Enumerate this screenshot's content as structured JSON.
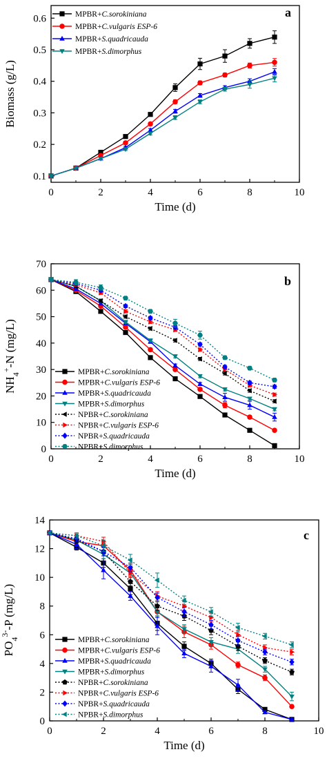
{
  "colors": {
    "C.sorokiniana": "#000000",
    "C.vulgaris ESP-6": "#ff0000",
    "S.quadricauda": "#0000ff",
    "S.dimorphus": "#008080"
  },
  "chart_data": [
    {
      "type": "line",
      "panel_label": "a",
      "xlabel": "Time (d)",
      "ylabel": "Biomass (g/L)",
      "xlim": [
        0,
        10
      ],
      "ylim": [
        0.08,
        0.64
      ],
      "xticks": [
        "0",
        "2",
        "4",
        "6",
        "8",
        "10"
      ],
      "yticks": [
        "0.1",
        "0.2",
        "0.3",
        "0.4",
        "0.5",
        "0.6"
      ],
      "grid": false,
      "legend_position": "top-left",
      "x": [
        0,
        1,
        2,
        3,
        4,
        5,
        6,
        7,
        8,
        9
      ],
      "series": [
        {
          "prefix": "MPBR+",
          "species": "C.sorokiniana",
          "marker": "square",
          "dash": "solid",
          "values": [
            0.1,
            0.125,
            0.175,
            0.225,
            0.295,
            0.38,
            0.455,
            0.48,
            0.52,
            0.54
          ],
          "errors": [
            0.003,
            0.004,
            0.004,
            0.005,
            0.005,
            0.012,
            0.018,
            0.02,
            0.015,
            0.02
          ]
        },
        {
          "prefix": "MPBR+",
          "species": "C.vulgaris ESP-6",
          "marker": "circle",
          "dash": "solid",
          "values": [
            0.1,
            0.125,
            0.165,
            0.205,
            0.265,
            0.335,
            0.395,
            0.42,
            0.45,
            0.46
          ],
          "errors": [
            0.003,
            0.004,
            0.004,
            0.005,
            0.005,
            0.006,
            0.006,
            0.006,
            0.008,
            0.012
          ]
        },
        {
          "prefix": "MPBR+",
          "species": "S.quadricauda",
          "marker": "triangle-up",
          "dash": "solid",
          "values": [
            0.1,
            0.125,
            0.155,
            0.19,
            0.245,
            0.305,
            0.355,
            0.38,
            0.4,
            0.43
          ],
          "errors": [
            0.003,
            0.004,
            0.004,
            0.004,
            0.005,
            0.006,
            0.006,
            0.006,
            0.008,
            0.01
          ]
        },
        {
          "prefix": "MPBR+",
          "species": "S.dimorphus",
          "marker": "triangle-down",
          "dash": "solid",
          "values": [
            0.1,
            0.125,
            0.155,
            0.185,
            0.235,
            0.285,
            0.335,
            0.375,
            0.39,
            0.41
          ],
          "errors": [
            0.003,
            0.004,
            0.004,
            0.004,
            0.005,
            0.006,
            0.006,
            0.006,
            0.012,
            0.012
          ]
        }
      ]
    },
    {
      "type": "line",
      "panel_label": "b",
      "xlabel": "Time (d)",
      "ylabel_main": "NH",
      "ylabel_sub": "4",
      "ylabel_sup": "+",
      "ylabel_rest": "-N (mg/L)",
      "xlim": [
        0,
        10
      ],
      "ylim": [
        0,
        70
      ],
      "xticks": [
        "0",
        "2",
        "4",
        "6",
        "8",
        "10"
      ],
      "yticks": [
        "0",
        "10",
        "20",
        "30",
        "40",
        "50",
        "60",
        "70"
      ],
      "grid": false,
      "legend_position": "bottom-left",
      "x": [
        0,
        1,
        2,
        3,
        4,
        5,
        6,
        7,
        8,
        9
      ],
      "series": [
        {
          "prefix": "MPBR+",
          "species": "C.sorokiniana",
          "marker": "square",
          "dash": "solid",
          "values": [
            64,
            59.5,
            52,
            44,
            34.5,
            26.5,
            19.8,
            12.8,
            7,
            1.2
          ],
          "errors": [
            0.5,
            0.6,
            0.6,
            0.6,
            0.6,
            0.6,
            0.6,
            0.6,
            0.6,
            0.5
          ]
        },
        {
          "prefix": "MPBR+",
          "species": "C.vulgaris ESP-6",
          "marker": "circle",
          "dash": "solid",
          "values": [
            64,
            60,
            54,
            46,
            37.5,
            30,
            22.5,
            16.5,
            12,
            7
          ],
          "errors": [
            0.5,
            0.6,
            0.6,
            0.6,
            0.6,
            0.6,
            0.6,
            1.0,
            0.6,
            0.5
          ]
        },
        {
          "prefix": "MPBR+",
          "species": "S.quadricauda",
          "marker": "triangle-up",
          "dash": "solid",
          "values": [
            64,
            60.5,
            55,
            47.5,
            40.5,
            31.5,
            24.5,
            19.5,
            16.5,
            12
          ],
          "errors": [
            0.5,
            0.6,
            0.6,
            0.6,
            0.6,
            0.6,
            0.6,
            1.5,
            1.5,
            1.5
          ]
        },
        {
          "prefix": "MPBR+",
          "species": "S.dimorphus",
          "marker": "triangle-down",
          "dash": "solid",
          "values": [
            64,
            61.5,
            56,
            48,
            41,
            35,
            27.5,
            22.5,
            19,
            15
          ],
          "errors": [
            0.5,
            0.6,
            0.6,
            0.6,
            0.6,
            0.6,
            0.6,
            0.6,
            0.6,
            0.6
          ]
        },
        {
          "prefix": "NPBR+",
          "species": "C.sorokiniana",
          "marker": "triangle-left",
          "dash": "dotted",
          "values": [
            64,
            61.5,
            56,
            50,
            45.5,
            41,
            34,
            28.5,
            22,
            18
          ],
          "errors": [
            0.5,
            0.6,
            0.6,
            0.6,
            0.6,
            0.6,
            0.6,
            0.6,
            0.6,
            0.6
          ]
        },
        {
          "prefix": "NPBR+",
          "species": "C.vulgaris ESP-6",
          "marker": "triangle-right",
          "dash": "dotted",
          "values": [
            64,
            62,
            59,
            52,
            48,
            45,
            37.5,
            30,
            24,
            20.5
          ],
          "errors": [
            0.5,
            0.6,
            0.6,
            0.6,
            0.6,
            0.6,
            0.6,
            0.6,
            0.6,
            0.6
          ]
        },
        {
          "prefix": "NPBR+",
          "species": "S.quadricauda",
          "marker": "diamond",
          "dash": "dotted",
          "values": [
            64,
            62.5,
            60,
            54,
            49.5,
            46,
            39.5,
            31,
            25,
            23.5
          ],
          "errors": [
            0.5,
            0.6,
            0.6,
            0.6,
            0.6,
            0.6,
            0.6,
            0.6,
            0.6,
            0.6
          ]
        },
        {
          "prefix": "NPBR+",
          "species": "S.dimorphus",
          "marker": "hexagon",
          "dash": "dotted",
          "values": [
            64,
            63,
            61,
            57,
            52,
            47.5,
            43,
            34.5,
            30.5,
            26
          ],
          "errors": [
            0.5,
            1.0,
            1.0,
            0.6,
            0.6,
            1.5,
            1.5,
            0.6,
            0.6,
            0.6
          ]
        }
      ]
    },
    {
      "type": "line",
      "panel_label": "c",
      "xlabel": "Time (d)",
      "ylabel_main": "PO",
      "ylabel_sub": "4",
      "ylabel_sup": "3-",
      "ylabel_rest": "-P (mg/L)",
      "xlim": [
        0,
        10
      ],
      "ylim": [
        0,
        14
      ],
      "xticks": [
        "0",
        "2",
        "4",
        "6",
        "8",
        "10"
      ],
      "yticks": [
        "0",
        "2",
        "4",
        "6",
        "8",
        "10",
        "12",
        "14"
      ],
      "grid": false,
      "legend_position": "bottom-left",
      "x": [
        0,
        1,
        2,
        3,
        4,
        5,
        6,
        7,
        8,
        9
      ],
      "series": [
        {
          "prefix": "MPBR+",
          "species": "C.sorokiniana",
          "marker": "square",
          "dash": "solid",
          "values": [
            13.1,
            12.1,
            11.0,
            9.2,
            6.8,
            5.2,
            4.0,
            2.2,
            0.8,
            0.1
          ],
          "errors": [
            0.1,
            0.2,
            0.3,
            0.4,
            0.5,
            0.3,
            0.3,
            0.3,
            0.1,
            0.05
          ]
        },
        {
          "prefix": "MPBR+",
          "species": "C.vulgaris ESP-6",
          "marker": "circle",
          "dash": "solid",
          "values": [
            13.1,
            12.5,
            12.2,
            10.5,
            7.6,
            6.2,
            5.3,
            3.9,
            3.0,
            1.0
          ],
          "errors": [
            0.1,
            0.2,
            0.3,
            0.4,
            0.3,
            0.4,
            0.3,
            0.2,
            0.2,
            0.1
          ]
        },
        {
          "prefix": "MPBR+",
          "species": "S.quadricauda",
          "marker": "triangle-up",
          "dash": "solid",
          "values": [
            13.1,
            12.3,
            10.5,
            8.7,
            6.6,
            4.7,
            3.8,
            2.5,
            0.6,
            0.1
          ],
          "errors": [
            0.1,
            0.3,
            0.6,
            0.3,
            0.6,
            0.3,
            0.4,
            0.4,
            0.1,
            0.05
          ]
        },
        {
          "prefix": "MPBR+",
          "species": "S.dimorphus",
          "marker": "triangle-down",
          "dash": "solid",
          "values": [
            13.1,
            12.6,
            11.6,
            10.3,
            7.6,
            6.4,
            5.5,
            5.0,
            3.6,
            1.7
          ],
          "errors": [
            0.1,
            0.2,
            0.3,
            0.3,
            0.3,
            0.3,
            0.3,
            0.3,
            0.2,
            0.3
          ]
        },
        {
          "prefix": "NPBR+",
          "species": "C.sorokiniana",
          "marker": "pentagon",
          "dash": "dotted",
          "values": [
            13.1,
            12.6,
            11.8,
            9.7,
            8.0,
            7.3,
            6.3,
            5.2,
            4.2,
            3.4
          ],
          "errors": [
            0.1,
            0.2,
            0.3,
            0.3,
            0.3,
            0.3,
            0.3,
            0.3,
            0.2,
            0.2
          ]
        },
        {
          "prefix": "NPBR+",
          "species": "C.vulgaris ESP-6",
          "marker": "triangle-right",
          "dash": "dotted",
          "values": [
            13.1,
            12.9,
            12.5,
            10.3,
            8.7,
            8.0,
            7.2,
            6.0,
            5.1,
            4.8
          ],
          "errors": [
            0.1,
            0.2,
            0.3,
            0.3,
            0.3,
            0.3,
            0.3,
            0.3,
            0.2,
            0.2
          ]
        },
        {
          "prefix": "NPBR+",
          "species": "S.quadricauda",
          "marker": "diamond",
          "dash": "dotted",
          "values": [
            13.1,
            12.7,
            11.8,
            10.7,
            8.6,
            7.6,
            6.7,
            5.6,
            4.8,
            4.1
          ],
          "errors": [
            0.1,
            0.2,
            0.3,
            0.3,
            0.3,
            0.3,
            0.3,
            0.3,
            0.2,
            0.2
          ]
        },
        {
          "prefix": "NPBR+",
          "species": "S.dimorphus",
          "marker": "triangle-left",
          "dash": "dotted",
          "values": [
            13.1,
            12.9,
            12.2,
            11.2,
            9.8,
            8.4,
            7.6,
            6.5,
            5.9,
            5.3
          ],
          "errors": [
            0.1,
            0.2,
            0.4,
            0.4,
            0.5,
            0.3,
            0.3,
            0.3,
            0.2,
            0.2
          ]
        }
      ]
    }
  ]
}
